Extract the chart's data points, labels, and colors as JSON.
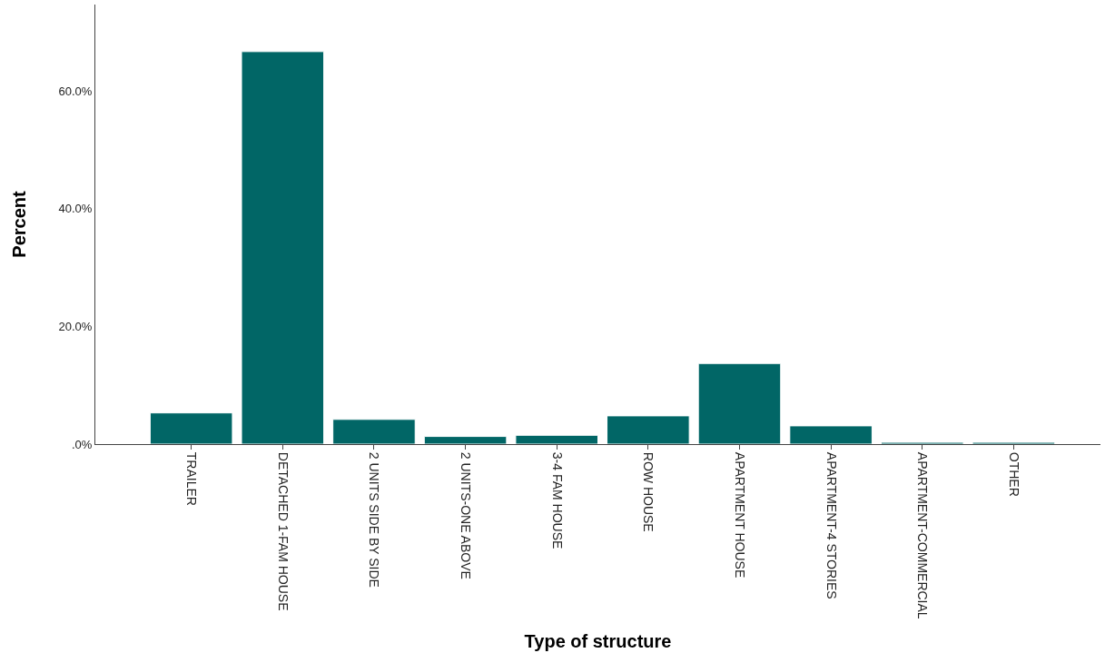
{
  "chart_data": {
    "type": "bar",
    "xlabel": "Type of structure",
    "ylabel": "Percent",
    "categories": [
      "TRAILER",
      "DETACHED 1-FAM HOUSE",
      "2 UNITS SIDE BY SIDE",
      "2 UNITS-ONE ABOVE",
      "3-4 FAM HOUSE",
      "ROW HOUSE",
      "APARTMENT HOUSE",
      "APARTMENT-4 STORIES",
      "APARTMENT-COMMERCIAL",
      "OTHER"
    ],
    "values": [
      5.3,
      66.7,
      4.2,
      1.3,
      1.5,
      4.8,
      13.7,
      3.1,
      0.3,
      0.3
    ],
    "color": "#016666",
    "ylim": [
      0,
      74.7
    ],
    "yticks": [
      {
        "value": 0,
        "label": ".0%"
      },
      {
        "value": 20,
        "label": "20.0%"
      },
      {
        "value": 40,
        "label": "40.0%"
      },
      {
        "value": 60,
        "label": "60.0%"
      }
    ]
  }
}
